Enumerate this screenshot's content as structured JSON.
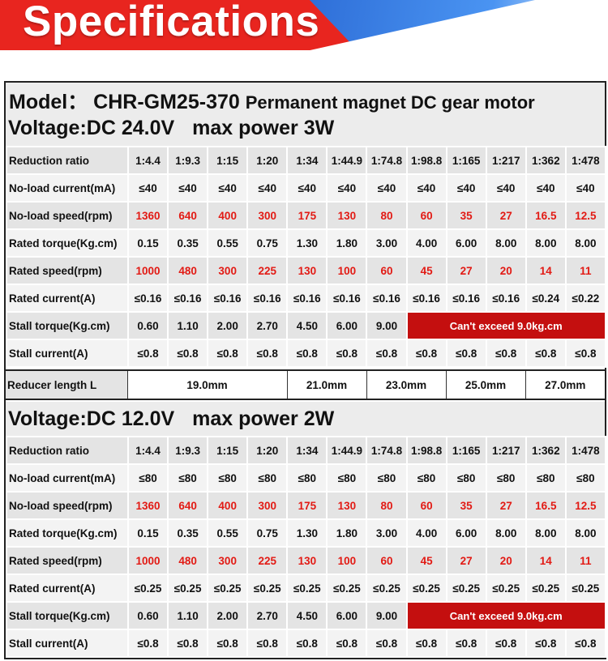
{
  "banner": {
    "title": "Specifications"
  },
  "model": {
    "label": "Model：",
    "code": "CHR-GM25-370",
    "description": "Permanent magnet DC gear motor"
  },
  "section1": {
    "voltage": "Voltage:DC 24.0V",
    "power": "max power 3W",
    "rows": [
      {
        "label": "Reduction ratio",
        "values": [
          "1:4.4",
          "1:9.3",
          "1:15",
          "1:20",
          "1:34",
          "1:44.9",
          "1:74.8",
          "1:98.8",
          "1:165",
          "1:217",
          "1:362",
          "1:478"
        ],
        "red": false
      },
      {
        "label": "No-load current(mA)",
        "values": [
          "≤40",
          "≤40",
          "≤40",
          "≤40",
          "≤40",
          "≤40",
          "≤40",
          "≤40",
          "≤40",
          "≤40",
          "≤40",
          "≤40"
        ],
        "red": false
      },
      {
        "label": "No-load speed(rpm)",
        "values": [
          "1360",
          "640",
          "400",
          "300",
          "175",
          "130",
          "80",
          "60",
          "35",
          "27",
          "16.5",
          "12.5"
        ],
        "red": true
      },
      {
        "label": "Rated torque(Kg.cm)",
        "values": [
          "0.15",
          "0.35",
          "0.55",
          "0.75",
          "1.30",
          "1.80",
          "3.00",
          "4.00",
          "6.00",
          "8.00",
          "8.00",
          "8.00"
        ],
        "red": false
      },
      {
        "label": "Rated speed(rpm)",
        "values": [
          "1000",
          "480",
          "300",
          "225",
          "130",
          "100",
          "60",
          "45",
          "27",
          "20",
          "14",
          "11"
        ],
        "red": true
      },
      {
        "label": "Rated current(A)",
        "values": [
          "≤0.16",
          "≤0.16",
          "≤0.16",
          "≤0.16",
          "≤0.16",
          "≤0.16",
          "≤0.16",
          "≤0.16",
          "≤0.16",
          "≤0.16",
          "≤0.24",
          "≤0.22"
        ],
        "red": false
      },
      {
        "label": "Stall torque(Kg.cm)",
        "values": [
          "0.60",
          "1.10",
          "2.00",
          "2.70",
          "4.50",
          "6.00",
          "9.00"
        ],
        "warning": "Can't exceed 9.0kg.cm",
        "red": false
      },
      {
        "label": "Stall current(A)",
        "values": [
          "≤0.8",
          "≤0.8",
          "≤0.8",
          "≤0.8",
          "≤0.8",
          "≤0.8",
          "≤0.8",
          "≤0.8",
          "≤0.8",
          "≤0.8",
          "≤0.8",
          "≤0.8"
        ],
        "red": false
      }
    ]
  },
  "reducer": {
    "label": "Reducer length L",
    "values": [
      "19.0mm",
      "21.0mm",
      "23.0mm",
      "25.0mm",
      "27.0mm"
    ]
  },
  "section2": {
    "voltage": "Voltage:DC 12.0V",
    "power": "max power 2W",
    "rows": [
      {
        "label": "Reduction ratio",
        "values": [
          "1:4.4",
          "1:9.3",
          "1:15",
          "1:20",
          "1:34",
          "1:44.9",
          "1:74.8",
          "1:98.8",
          "1:165",
          "1:217",
          "1:362",
          "1:478"
        ],
        "red": false
      },
      {
        "label": "No-load current(mA)",
        "values": [
          "≤80",
          "≤80",
          "≤80",
          "≤80",
          "≤80",
          "≤80",
          "≤80",
          "≤80",
          "≤80",
          "≤80",
          "≤80",
          "≤80"
        ],
        "red": false
      },
      {
        "label": "No-load speed(rpm)",
        "values": [
          "1360",
          "640",
          "400",
          "300",
          "175",
          "130",
          "80",
          "60",
          "35",
          "27",
          "16.5",
          "12.5"
        ],
        "red": true
      },
      {
        "label": "Rated torque(Kg.cm)",
        "values": [
          "0.15",
          "0.35",
          "0.55",
          "0.75",
          "1.30",
          "1.80",
          "3.00",
          "4.00",
          "6.00",
          "8.00",
          "8.00",
          "8.00"
        ],
        "red": false
      },
      {
        "label": "Rated speed(rpm)",
        "values": [
          "1000",
          "480",
          "300",
          "225",
          "130",
          "100",
          "60",
          "45",
          "27",
          "20",
          "14",
          "11"
        ],
        "red": true
      },
      {
        "label": "Rated current(A)",
        "values": [
          "≤0.25",
          "≤0.25",
          "≤0.25",
          "≤0.25",
          "≤0.25",
          "≤0.25",
          "≤0.25",
          "≤0.25",
          "≤0.25",
          "≤0.25",
          "≤0.25",
          "≤0.25"
        ],
        "red": false
      },
      {
        "label": "Stall torque(Kg.cm)",
        "values": [
          "0.60",
          "1.10",
          "2.00",
          "2.70",
          "4.50",
          "6.00",
          "9.00"
        ],
        "warning": "Can't exceed 9.0kg.cm",
        "red": false
      },
      {
        "label": "Stall current(A)",
        "values": [
          "≤0.8",
          "≤0.8",
          "≤0.8",
          "≤0.8",
          "≤0.8",
          "≤0.8",
          "≤0.8",
          "≤0.8",
          "≤0.8",
          "≤0.8",
          "≤0.8",
          "≤0.8"
        ],
        "red": false
      }
    ]
  },
  "colors": {
    "banner_red": "#e8251f",
    "banner_blue": "#3f86ee",
    "value_red": "#e21a14",
    "warning_bg": "#c40f0f"
  }
}
